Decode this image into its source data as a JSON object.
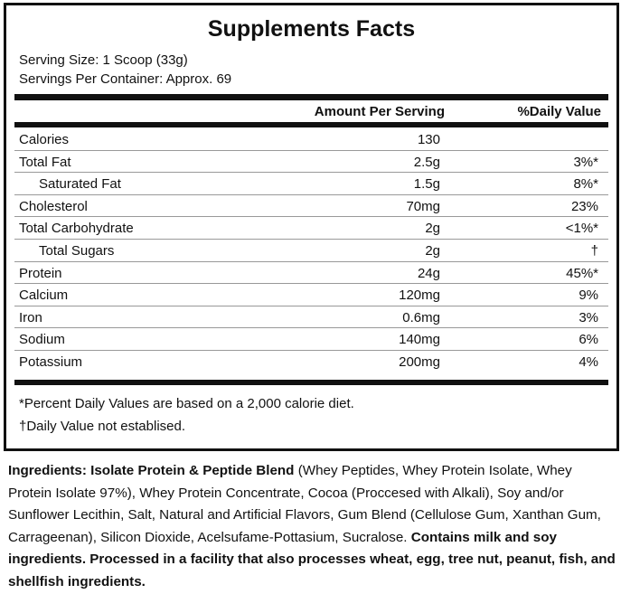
{
  "title": "Supplements Facts",
  "serving_size": "Serving Size: 1 Scoop (33g)",
  "servings_per_container": "Servings Per Container: Approx. 69",
  "headers": {
    "amount": "Amount Per Serving",
    "dv": "%Daily Value"
  },
  "rows": [
    {
      "label": "Calories",
      "amount": "130",
      "dv": ""
    },
    {
      "label": "Total Fat",
      "amount": "2.5g",
      "dv": "3%*"
    },
    {
      "label": "Saturated Fat",
      "amount": "1.5g",
      "dv": "8%*"
    },
    {
      "label": "Cholesterol",
      "amount": "70mg",
      "dv": "23%"
    },
    {
      "label": "Total Carbohydrate",
      "amount": "2g",
      "dv": "<1%*"
    },
    {
      "label": "Total Sugars",
      "amount": "2g",
      "dv": "†"
    },
    {
      "label": "Protein",
      "amount": "24g",
      "dv": "45%*"
    },
    {
      "label": "Calcium",
      "amount": "120mg",
      "dv": "9%"
    },
    {
      "label": "Iron",
      "amount": "0.6mg",
      "dv": "3%"
    },
    {
      "label": "Sodium",
      "amount": "140mg",
      "dv": "6%"
    },
    {
      "label": "Potassium",
      "amount": "200mg",
      "dv": "4%"
    }
  ],
  "footnotes": [
    "*Percent Daily Values are based on a 2,000 calorie diet.",
    "†Daily Value not establised."
  ],
  "ingredients": {
    "bold_lead": "Ingredients: Isolate Protein & Peptide Blend",
    "text": " (Whey Peptides, Whey Protein Isolate, Whey Protein Isolate 97%), Whey Protein Concentrate, Cocoa (Proccesed with Alkali), Soy and/or Sunflower Lecithin, Salt, Natural and Artificial Flavors, Gum Blend (Cellulose Gum, Xanthan Gum, Carrageenan), Silicon Dioxide, Acelsufame-Pottasium, Sucralose.",
    "allergen": "Contains milk and soy ingredients. Processed in a facility that also processes wheat, egg, tree nut, peanut, fish, and shellfish ingredients."
  }
}
